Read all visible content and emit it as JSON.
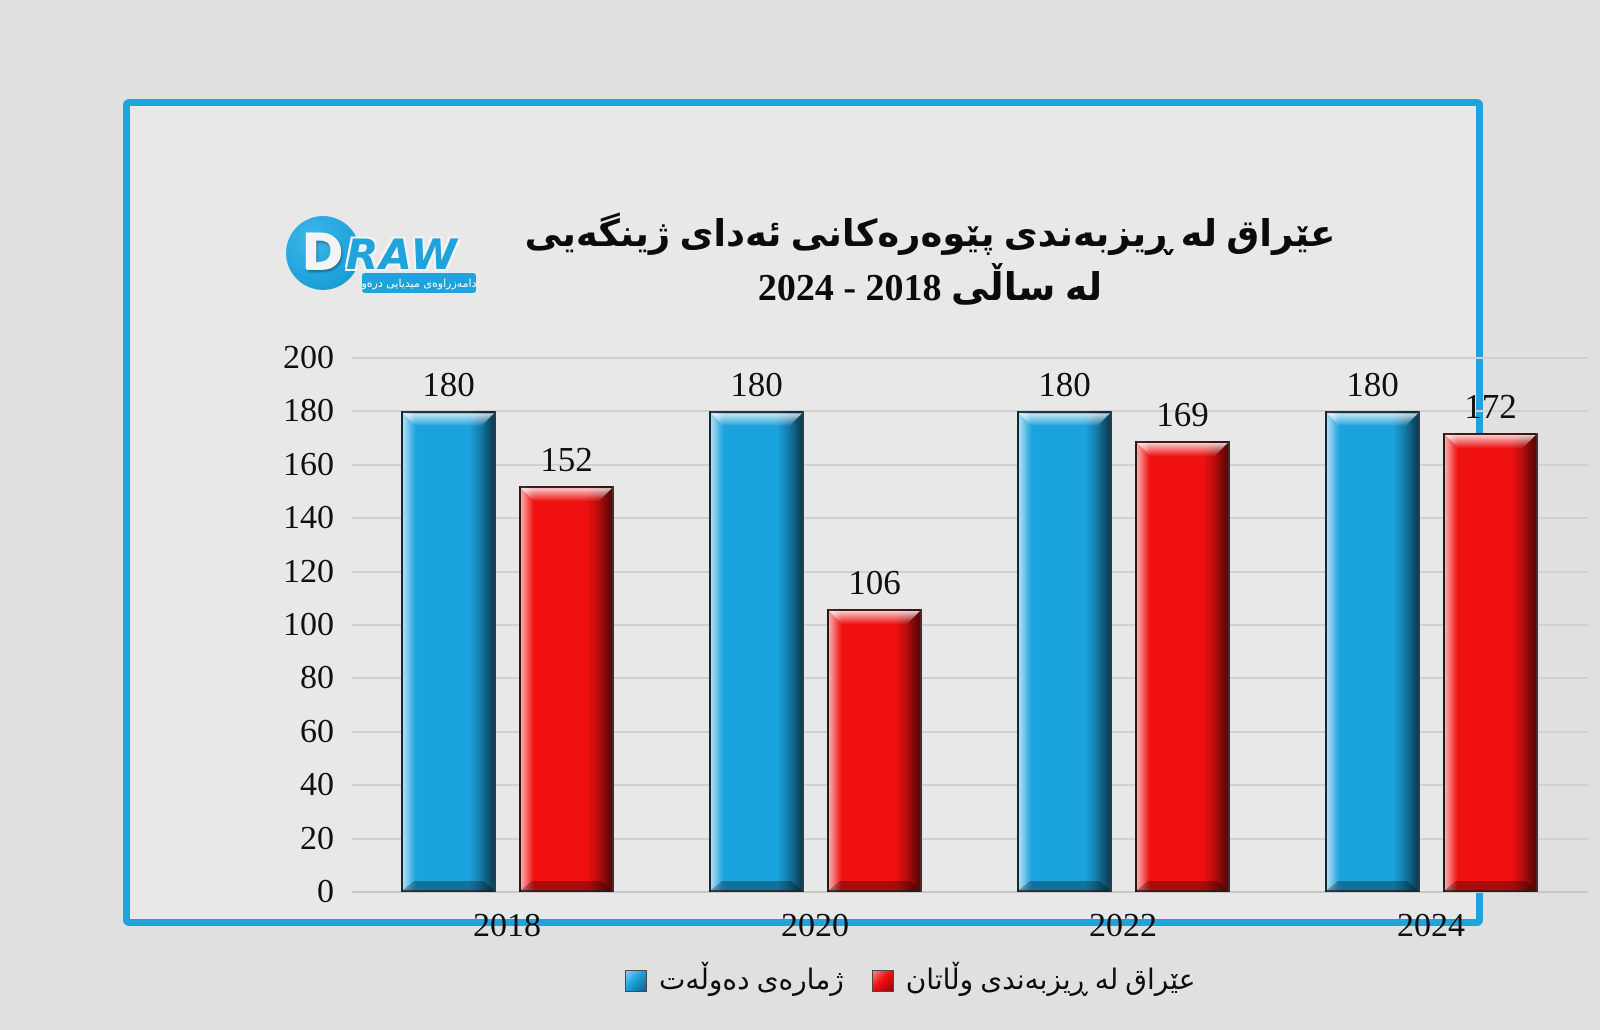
{
  "logo": {
    "circle_letter": "D",
    "brand": "RAW",
    "banner": "دامەزراوەی میدیایی درەو"
  },
  "title": {
    "line1": "عێراق له ڕیزبەندی پێوەرەکانی ئەدای ژینگەیی",
    "line2": "له ساڵی 2018 - 2024"
  },
  "chart_data": {
    "type": "bar",
    "categories": [
      "2018",
      "2020",
      "2022",
      "2024"
    ],
    "series": [
      {
        "name": "ژمارەی دەوڵەت",
        "color": "#1ba3de",
        "values": [
          180,
          180,
          180,
          180
        ]
      },
      {
        "name": "عێراق له ڕیزبەندی وڵاتان",
        "color": "#f01010",
        "values": [
          152,
          106,
          169,
          172
        ]
      }
    ],
    "xlabel": "",
    "ylabel": "",
    "ylim": [
      0,
      200
    ],
    "yticks": [
      0,
      20,
      40,
      60,
      80,
      100,
      120,
      140,
      160,
      180,
      200
    ],
    "grid": true,
    "data_labels": true,
    "legend_position": "bottom"
  },
  "colors": {
    "page_bg": "#e1e0e0",
    "card_bg": "#e9e8e8",
    "card_border": "#1fa3dc",
    "grid": "#d2d0d0",
    "text": "#141414"
  }
}
